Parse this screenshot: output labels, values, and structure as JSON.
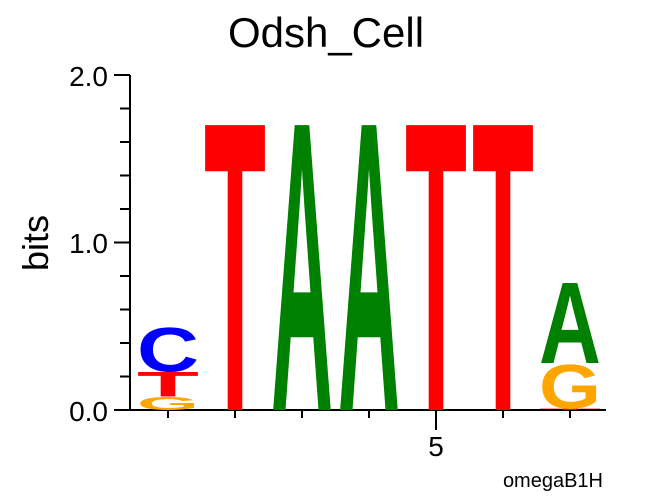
{
  "chart_data": {
    "type": "sequence-logo",
    "title": "Odsh_Cell",
    "ylabel": "bits",
    "xlabel": "",
    "ylim": [
      0,
      2
    ],
    "y_ticks": [
      "0.0",
      "1.0",
      "2.0"
    ],
    "x_tick_labels": [
      {
        "position": 5,
        "label": "5"
      }
    ],
    "footer": "omegaB1H",
    "colors": {
      "A": "#008000",
      "C": "#0000ff",
      "G": "#ffa500",
      "T": "#ff0000"
    },
    "positions": [
      {
        "index": 1,
        "letters": [
          {
            "letter": "G",
            "bits": 0.08
          },
          {
            "letter": "T",
            "bits": 0.15
          },
          {
            "letter": "C",
            "bits": 0.27
          }
        ]
      },
      {
        "index": 2,
        "letters": [
          {
            "letter": "T",
            "bits": 1.78
          }
        ]
      },
      {
        "index": 3,
        "letters": [
          {
            "letter": "A",
            "bits": 1.78
          }
        ]
      },
      {
        "index": 4,
        "letters": [
          {
            "letter": "A",
            "bits": 1.78
          }
        ]
      },
      {
        "index": 5,
        "letters": [
          {
            "letter": "T",
            "bits": 1.78
          }
        ]
      },
      {
        "index": 6,
        "letters": [
          {
            "letter": "T",
            "bits": 1.78
          }
        ]
      },
      {
        "index": 7,
        "letters": [
          {
            "letter": "T",
            "bits": 0.01
          },
          {
            "letter": "G",
            "bits": 0.27
          },
          {
            "letter": "A",
            "bits": 0.5
          }
        ]
      }
    ]
  }
}
